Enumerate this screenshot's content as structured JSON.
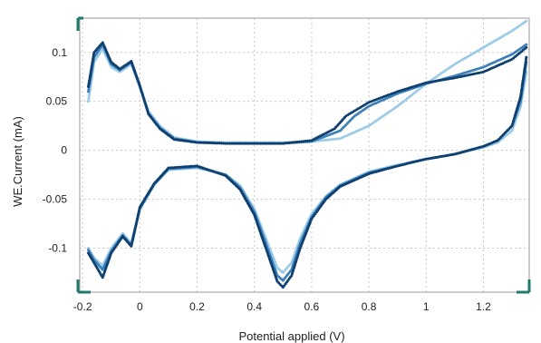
{
  "colors": {
    "grid": "#c8c8c8",
    "handle": "#1f7a6a"
  },
  "chart_data": {
    "type": "scatter",
    "title": "",
    "xlabel": "Potential applied (V)",
    "ylabel": "WE.Current (mA)",
    "xlim": [
      -0.21,
      1.36
    ],
    "ylim": [
      -0.145,
      0.135
    ],
    "x_ticks": [
      -0.2,
      0,
      0.2,
      0.4,
      0.6,
      0.8,
      1,
      1.2
    ],
    "x_tick_labels": [
      "-0.2",
      "0",
      "0.2",
      "0.4",
      "0.6",
      "0.8",
      "1",
      "1.2"
    ],
    "y_ticks": [
      -0.1,
      -0.05,
      0,
      0.05,
      0.1
    ],
    "y_tick_labels": [
      "-0.1",
      "-0.05",
      "0",
      "0.05",
      "0.1"
    ],
    "grid": true,
    "legend": "none",
    "series": [
      {
        "color": "#9ccbe8",
        "anodic": [
          [
            -0.18,
            0.05
          ],
          [
            -0.16,
            0.09
          ],
          [
            -0.13,
            0.104
          ],
          [
            -0.1,
            0.085
          ],
          [
            -0.07,
            0.08
          ],
          [
            -0.03,
            0.088
          ],
          [
            0,
            0.065
          ],
          [
            0.03,
            0.04
          ],
          [
            0.07,
            0.025
          ],
          [
            0.12,
            0.013
          ],
          [
            0.2,
            0.009
          ],
          [
            0.3,
            0.008
          ],
          [
            0.4,
            0.008
          ],
          [
            0.5,
            0.008
          ],
          [
            0.6,
            0.009
          ],
          [
            0.7,
            0.012
          ],
          [
            0.8,
            0.025
          ],
          [
            0.9,
            0.045
          ],
          [
            1.0,
            0.068
          ],
          [
            1.1,
            0.088
          ],
          [
            1.2,
            0.105
          ],
          [
            1.3,
            0.122
          ],
          [
            1.35,
            0.132
          ]
        ],
        "cathodic": [
          [
            1.35,
            0.08
          ],
          [
            1.33,
            0.045
          ],
          [
            1.3,
            0.02
          ],
          [
            1.25,
            0.008
          ],
          [
            1.2,
            0.003
          ],
          [
            1.1,
            -0.004
          ],
          [
            1.0,
            -0.009
          ],
          [
            0.9,
            -0.015
          ],
          [
            0.8,
            -0.022
          ],
          [
            0.7,
            -0.035
          ],
          [
            0.65,
            -0.047
          ],
          [
            0.6,
            -0.065
          ],
          [
            0.56,
            -0.09
          ],
          [
            0.53,
            -0.115
          ],
          [
            0.5,
            -0.125
          ],
          [
            0.48,
            -0.12
          ],
          [
            0.44,
            -0.09
          ],
          [
            0.4,
            -0.06
          ],
          [
            0.35,
            -0.036
          ],
          [
            0.3,
            -0.025
          ],
          [
            0.2,
            -0.018
          ],
          [
            0.1,
            -0.02
          ],
          [
            0.05,
            -0.035
          ],
          [
            0.0,
            -0.06
          ],
          [
            -0.03,
            -0.095
          ],
          [
            -0.06,
            -0.085
          ],
          [
            -0.1,
            -0.1
          ],
          [
            -0.13,
            -0.118
          ],
          [
            -0.16,
            -0.11
          ],
          [
            -0.18,
            -0.1
          ]
        ]
      },
      {
        "color": "#3d7fb8",
        "anodic": [
          [
            -0.18,
            0.06
          ],
          [
            -0.16,
            0.095
          ],
          [
            -0.13,
            0.108
          ],
          [
            -0.1,
            0.088
          ],
          [
            -0.07,
            0.082
          ],
          [
            -0.03,
            0.09
          ],
          [
            0,
            0.065
          ],
          [
            0.03,
            0.038
          ],
          [
            0.07,
            0.023
          ],
          [
            0.12,
            0.012
          ],
          [
            0.2,
            0.008
          ],
          [
            0.3,
            0.007
          ],
          [
            0.4,
            0.007
          ],
          [
            0.5,
            0.007
          ],
          [
            0.6,
            0.009
          ],
          [
            0.7,
            0.02
          ],
          [
            0.75,
            0.035
          ],
          [
            0.8,
            0.045
          ],
          [
            0.9,
            0.058
          ],
          [
            1.0,
            0.068
          ],
          [
            1.1,
            0.076
          ],
          [
            1.2,
            0.085
          ],
          [
            1.3,
            0.098
          ],
          [
            1.35,
            0.108
          ]
        ],
        "cathodic": [
          [
            1.35,
            0.09
          ],
          [
            1.33,
            0.05
          ],
          [
            1.3,
            0.025
          ],
          [
            1.25,
            0.01
          ],
          [
            1.2,
            0.004
          ],
          [
            1.1,
            -0.004
          ],
          [
            1.0,
            -0.009
          ],
          [
            0.9,
            -0.016
          ],
          [
            0.8,
            -0.023
          ],
          [
            0.7,
            -0.036
          ],
          [
            0.65,
            -0.048
          ],
          [
            0.6,
            -0.068
          ],
          [
            0.56,
            -0.095
          ],
          [
            0.53,
            -0.122
          ],
          [
            0.5,
            -0.133
          ],
          [
            0.48,
            -0.128
          ],
          [
            0.44,
            -0.095
          ],
          [
            0.4,
            -0.063
          ],
          [
            0.35,
            -0.038
          ],
          [
            0.3,
            -0.025
          ],
          [
            0.2,
            -0.017
          ],
          [
            0.1,
            -0.019
          ],
          [
            0.05,
            -0.035
          ],
          [
            0.0,
            -0.06
          ],
          [
            -0.03,
            -0.097
          ],
          [
            -0.06,
            -0.087
          ],
          [
            -0.1,
            -0.103
          ],
          [
            -0.13,
            -0.122
          ],
          [
            -0.16,
            -0.112
          ],
          [
            -0.18,
            -0.102
          ]
        ]
      },
      {
        "color": "#0e3f6e",
        "anodic": [
          [
            -0.18,
            0.065
          ],
          [
            -0.16,
            0.1
          ],
          [
            -0.13,
            0.11
          ],
          [
            -0.1,
            0.09
          ],
          [
            -0.07,
            0.083
          ],
          [
            -0.03,
            0.091
          ],
          [
            0,
            0.066
          ],
          [
            0.03,
            0.037
          ],
          [
            0.07,
            0.022
          ],
          [
            0.12,
            0.011
          ],
          [
            0.2,
            0.008
          ],
          [
            0.3,
            0.007
          ],
          [
            0.4,
            0.007
          ],
          [
            0.5,
            0.007
          ],
          [
            0.6,
            0.01
          ],
          [
            0.68,
            0.022
          ],
          [
            0.72,
            0.035
          ],
          [
            0.8,
            0.049
          ],
          [
            0.9,
            0.06
          ],
          [
            1.0,
            0.069
          ],
          [
            1.1,
            0.074
          ],
          [
            1.2,
            0.08
          ],
          [
            1.3,
            0.093
          ],
          [
            1.35,
            0.105
          ]
        ],
        "cathodic": [
          [
            1.35,
            0.095
          ],
          [
            1.33,
            0.055
          ],
          [
            1.3,
            0.025
          ],
          [
            1.25,
            0.01
          ],
          [
            1.2,
            0.004
          ],
          [
            1.1,
            -0.004
          ],
          [
            1.0,
            -0.009
          ],
          [
            0.9,
            -0.016
          ],
          [
            0.8,
            -0.024
          ],
          [
            0.7,
            -0.037
          ],
          [
            0.65,
            -0.05
          ],
          [
            0.6,
            -0.07
          ],
          [
            0.56,
            -0.1
          ],
          [
            0.53,
            -0.128
          ],
          [
            0.5,
            -0.14
          ],
          [
            0.48,
            -0.134
          ],
          [
            0.44,
            -0.1
          ],
          [
            0.4,
            -0.066
          ],
          [
            0.35,
            -0.04
          ],
          [
            0.3,
            -0.026
          ],
          [
            0.2,
            -0.016
          ],
          [
            0.1,
            -0.018
          ],
          [
            0.05,
            -0.034
          ],
          [
            0.0,
            -0.058
          ],
          [
            -0.03,
            -0.098
          ],
          [
            -0.06,
            -0.088
          ],
          [
            -0.1,
            -0.105
          ],
          [
            -0.13,
            -0.13
          ],
          [
            -0.16,
            -0.115
          ],
          [
            -0.18,
            -0.105
          ]
        ]
      }
    ]
  }
}
